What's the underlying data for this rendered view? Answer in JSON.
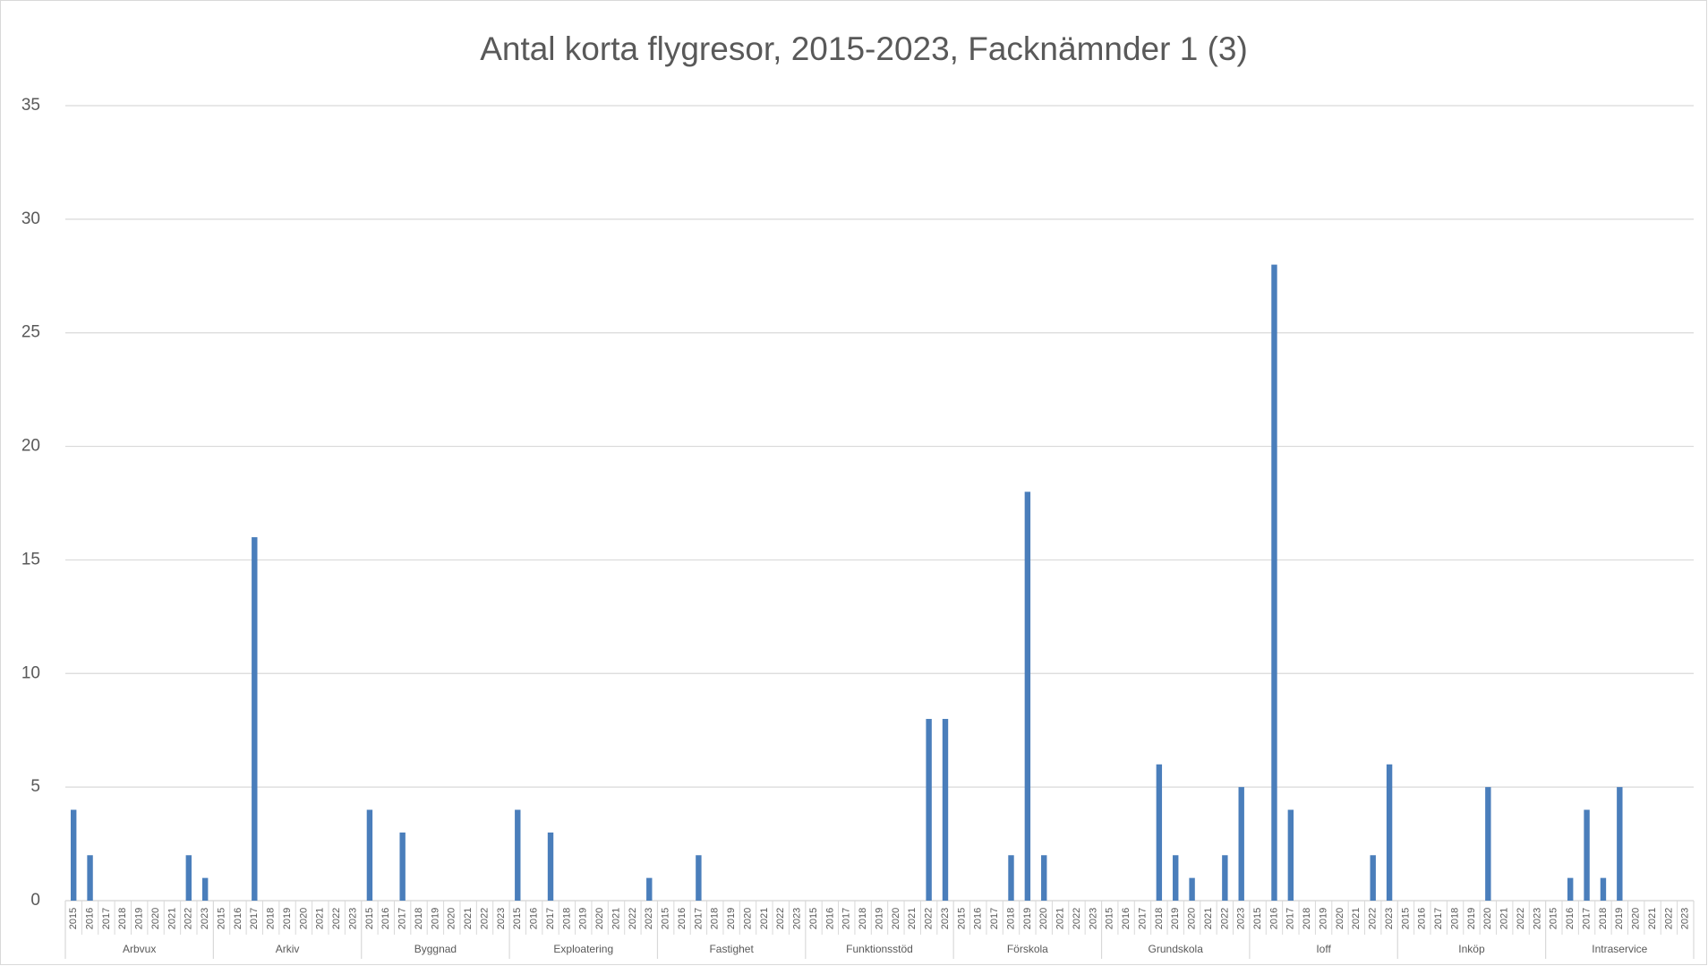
{
  "chart_data": {
    "type": "bar",
    "title": "Antal korta flygresor, 2015-2023, Facknämnder 1 (3)",
    "years": [
      "2015",
      "2016",
      "2017",
      "2018",
      "2019",
      "2020",
      "2021",
      "2022",
      "2023"
    ],
    "groups": [
      {
        "name": "Arbvux",
        "values": [
          4,
          2,
          0,
          0,
          0,
          0,
          0,
          2,
          1
        ]
      },
      {
        "name": "Arkiv",
        "values": [
          0,
          0,
          16,
          0,
          0,
          0,
          0,
          0,
          0
        ]
      },
      {
        "name": "Byggnad",
        "values": [
          4,
          0,
          3,
          0,
          0,
          0,
          0,
          0,
          0
        ]
      },
      {
        "name": "Exploatering",
        "values": [
          4,
          0,
          3,
          0,
          0,
          0,
          0,
          0,
          1
        ]
      },
      {
        "name": "Fastighet",
        "values": [
          0,
          0,
          2,
          0,
          0,
          0,
          0,
          0,
          0
        ]
      },
      {
        "name": "Funktionsstöd",
        "values": [
          0,
          0,
          0,
          0,
          0,
          0,
          0,
          8,
          8
        ]
      },
      {
        "name": "Förskola",
        "values": [
          0,
          0,
          0,
          2,
          18,
          2,
          0,
          0,
          0
        ]
      },
      {
        "name": "Grundskola",
        "values": [
          0,
          0,
          0,
          6,
          2,
          1,
          0,
          2,
          5
        ]
      },
      {
        "name": "Ioff",
        "values": [
          0,
          28,
          4,
          0,
          0,
          0,
          0,
          2,
          6
        ]
      },
      {
        "name": "Inköp",
        "values": [
          0,
          0,
          0,
          0,
          0,
          5,
          0,
          0,
          0
        ]
      },
      {
        "name": "Intraservice",
        "values": [
          0,
          1,
          4,
          1,
          5,
          0,
          0,
          0,
          0
        ]
      }
    ],
    "color": "#4a7ebb",
    "ylim": [
      0,
      35
    ],
    "yticks": [
      0,
      5,
      10,
      15,
      20,
      25,
      30,
      35
    ],
    "grid": true
  }
}
